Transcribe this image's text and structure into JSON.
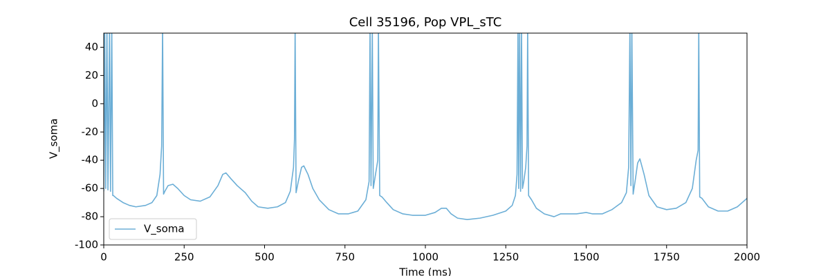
{
  "chart_data": {
    "type": "line",
    "title": "Cell 35196, Pop VPL_sTC",
    "x_label": "Time (ms)",
    "y_label": "V_soma",
    "x": [
      0,
      3,
      6,
      10,
      13,
      18,
      21,
      25,
      28,
      30,
      40,
      60,
      80,
      100,
      130,
      150,
      165,
      175,
      180,
      183,
      186,
      190,
      200,
      215,
      230,
      250,
      270,
      300,
      330,
      355,
      370,
      380,
      395,
      415,
      440,
      460,
      480,
      510,
      540,
      565,
      580,
      590,
      593,
      595,
      598,
      605,
      615,
      622,
      635,
      650,
      670,
      700,
      730,
      760,
      790,
      815,
      825,
      828,
      831,
      835,
      838,
      845,
      852,
      854,
      858,
      865,
      880,
      900,
      930,
      960,
      1000,
      1030,
      1050,
      1065,
      1080,
      1100,
      1130,
      1170,
      1210,
      1250,
      1270,
      1280,
      1285,
      1288,
      1290,
      1293,
      1296,
      1299,
      1302,
      1306,
      1312,
      1316,
      1318,
      1321,
      1330,
      1345,
      1370,
      1400,
      1420,
      1440,
      1470,
      1500,
      1520,
      1550,
      1580,
      1610,
      1625,
      1632,
      1636,
      1639,
      1642,
      1646,
      1652,
      1660,
      1667,
      1680,
      1695,
      1720,
      1750,
      1780,
      1810,
      1830,
      1842,
      1848,
      1850,
      1853,
      1860,
      1880,
      1910,
      1940,
      1970,
      2000
    ],
    "series": [
      {
        "name": "V_soma",
        "color": "#6baed6",
        "values": [
          -62,
          55,
          -60,
          55,
          -61,
          55,
          -62,
          55,
          -65,
          -65,
          -67,
          -70,
          -72,
          -73,
          -72,
          -70,
          -65,
          -50,
          -30,
          55,
          -64,
          -62,
          -58,
          -57,
          -60,
          -65,
          -68,
          -69,
          -66,
          -58,
          -50,
          -49,
          -53,
          -58,
          -63,
          -69,
          -73,
          -74,
          -73,
          -70,
          -62,
          -45,
          -25,
          55,
          -63,
          -55,
          -45,
          -44,
          -50,
          -60,
          -68,
          -75,
          -78,
          -78,
          -76,
          -68,
          -55,
          55,
          -58,
          55,
          -60,
          -50,
          -40,
          55,
          -65,
          -66,
          -70,
          -75,
          -78,
          -79,
          -79,
          -77,
          -74,
          -74,
          -78,
          -81,
          -82,
          -81,
          -79,
          -76,
          -72,
          -65,
          -50,
          55,
          -60,
          55,
          -62,
          55,
          -60,
          -55,
          -45,
          -30,
          55,
          -65,
          -68,
          -74,
          -78,
          -80,
          -78,
          -78,
          -78,
          -77,
          -78,
          -78,
          -75,
          -70,
          -63,
          -45,
          55,
          -58,
          55,
          -64,
          -55,
          -42,
          -39,
          -50,
          -65,
          -73,
          -75,
          -74,
          -70,
          -60,
          -40,
          -33,
          55,
          -66,
          -67,
          -73,
          -76,
          -76,
          -73,
          -67
        ]
      }
    ],
    "xlim": [
      0,
      2000
    ],
    "xticks": [
      0,
      250,
      500,
      750,
      1000,
      1250,
      1500,
      1750,
      2000
    ],
    "ylim": [
      -100,
      50
    ],
    "yticks": [
      -100,
      -80,
      -60,
      -40,
      -20,
      0,
      20,
      40
    ],
    "legend": "lower left"
  }
}
